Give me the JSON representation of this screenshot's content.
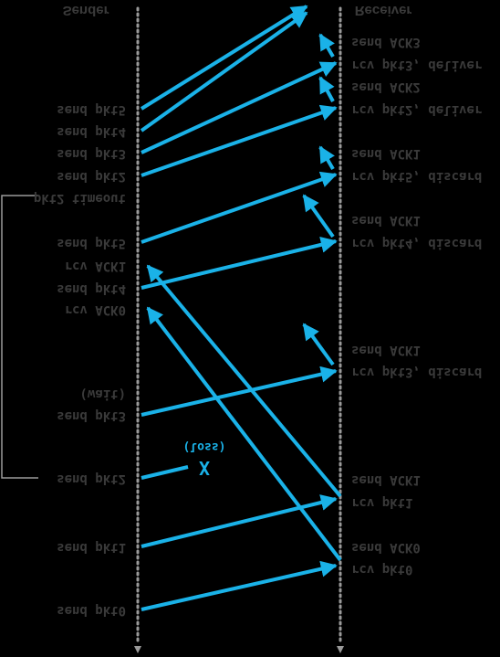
{
  "diagram": {
    "sender_title": "Sender",
    "receiver_title": "Receiver",
    "sender_events": [
      "send pkt0",
      "send pkt1",
      "send pkt2",
      "send pkt3",
      "(wait)",
      "rcv ACK0",
      "send pkt4",
      "rcv ACK1",
      "send pkt5",
      "pkt2 timeout",
      "send pkt2",
      "send pkt3",
      "send pkt4",
      "send pkt5"
    ],
    "receiver_events": [
      "rcv pkt0",
      "send ACK0",
      "rcv pkt1",
      "send ACK1",
      "rcv pkt3, discard",
      "send ACK1",
      "rcv pkt4, discard",
      "send ACK1",
      "rcv pkt5, discard",
      "send ACK1",
      "rcv pkt2, deliver",
      "send ACK2",
      "rcv pkt3, deliver",
      "send ACK3"
    ],
    "loss_label": "(loss)",
    "loss_mark": "X",
    "colors": {
      "arrow": "#1ab2e8",
      "text": "#3a3a3a",
      "timeline": "#9a9a9a",
      "background": "#000000"
    }
  }
}
